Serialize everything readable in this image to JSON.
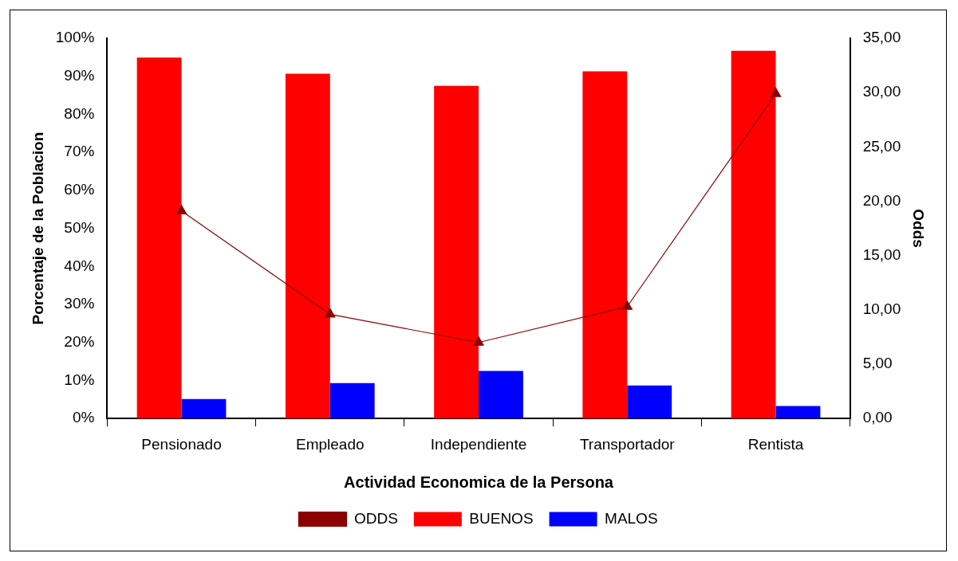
{
  "chart_data": {
    "type": "bar",
    "xlabel": "Actividad Economica de la Persona",
    "ylabel": "Porcentaje de la Poblacion",
    "y2label": "Odds",
    "categories": [
      "Pensionado",
      "Empleado",
      "Independiente",
      "Transportador",
      "Rentista"
    ],
    "series": [
      {
        "name": "BUENOS",
        "color": "#ff0000",
        "values": [
          94.9,
          90.7,
          87.5,
          91.3,
          96.7
        ]
      },
      {
        "name": "MALOS",
        "color": "#0000ff",
        "values": [
          5.1,
          9.3,
          12.5,
          8.7,
          3.3
        ]
      },
      {
        "name": "ODDS",
        "type": "line",
        "axis": "y2",
        "marker": "triangle",
        "color": "#8b0000",
        "values": [
          19.1,
          9.6,
          7.0,
          10.3,
          29.9
        ]
      }
    ],
    "ylim": [
      0,
      100
    ],
    "yticks": [
      {
        "value": 0,
        "label": "0%"
      },
      {
        "value": 10,
        "label": "10%"
      },
      {
        "value": 20,
        "label": "20%"
      },
      {
        "value": 30,
        "label": "30%"
      },
      {
        "value": 40,
        "label": "40%"
      },
      {
        "value": 50,
        "label": "50%"
      },
      {
        "value": 60,
        "label": "60%"
      },
      {
        "value": 70,
        "label": "70%"
      },
      {
        "value": 80,
        "label": "80%"
      },
      {
        "value": 90,
        "label": "90%"
      },
      {
        "value": 100,
        "label": "100%"
      }
    ],
    "y2lim": [
      0,
      35
    ],
    "y2ticks": [
      {
        "value": 0,
        "label": "0,00"
      },
      {
        "value": 5,
        "label": "5,00"
      },
      {
        "value": 10,
        "label": "10,00"
      },
      {
        "value": 15,
        "label": "15,00"
      },
      {
        "value": 20,
        "label": "20,00"
      },
      {
        "value": 25,
        "label": "25,00"
      },
      {
        "value": 30,
        "label": "30,00"
      },
      {
        "value": 35,
        "label": "35,00"
      }
    ],
    "legend": "bottom"
  }
}
